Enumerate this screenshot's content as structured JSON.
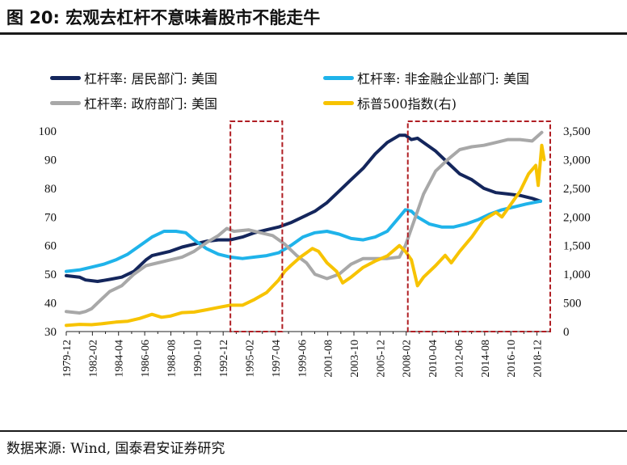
{
  "header": {
    "title": "图 20:  宏观去杠杆不意味着股市不能走牛"
  },
  "footer": {
    "source": "数据来源:  Wind,  国泰君安证券研究"
  },
  "chart_data": {
    "type": "line",
    "legend": [
      {
        "name": "杠杆率: 居民部门: 美国",
        "color": "#14265c"
      },
      {
        "name": "杠杆率: 非金融企业部门: 美国",
        "color": "#1fb3ea"
      },
      {
        "name": "杠杆率: 政府部门: 美国",
        "color": "#a8a8a8"
      },
      {
        "name": "标普500指数(右)",
        "color": "#f7c300"
      }
    ],
    "left_axis": {
      "min": 30,
      "max": 100,
      "ticks": [
        "30",
        "40",
        "50",
        "60",
        "70",
        "80",
        "90",
        "100"
      ]
    },
    "right_axis": {
      "min": 0,
      "max": 3500,
      "ticks": [
        "0",
        "500",
        "1,000",
        "1,500",
        "2,000",
        "2,500",
        "3,000",
        "3,500"
      ]
    },
    "x_ticks": [
      "1979-12",
      "1982-02",
      "1984-04",
      "1986-06",
      "1988-08",
      "1990-10",
      "1992-12",
      "1995-02",
      "1997-04",
      "1999-06",
      "2001-08",
      "2003-10",
      "2005-12",
      "2008-02",
      "2010-04",
      "2012-06",
      "2014-08",
      "2016-10",
      "2018-12"
    ],
    "x_range": [
      1979.9,
      2020.0
    ],
    "highlight_boxes": [
      {
        "label": "1993-1997",
        "start": 1993.5,
        "end": 1997.8
      },
      {
        "label": "2008-2020",
        "start": 2008.2,
        "end": 2020.0
      }
    ],
    "series": [
      {
        "name": "杠杆率: 居民部门: 美国",
        "axis": "left",
        "points": [
          [
            1979.9,
            49.5
          ],
          [
            1981,
            49
          ],
          [
            1981.5,
            48
          ],
          [
            1982.5,
            47.5
          ],
          [
            1983.5,
            48.2
          ],
          [
            1984.5,
            49
          ],
          [
            1985.5,
            51
          ],
          [
            1986.5,
            55
          ],
          [
            1987,
            56.5
          ],
          [
            1987.5,
            57
          ],
          [
            1988.5,
            58
          ],
          [
            1989.5,
            59.5
          ],
          [
            1990.5,
            60.5
          ],
          [
            1991.5,
            61.5
          ],
          [
            1992.5,
            62
          ],
          [
            1993.5,
            62
          ],
          [
            1994.5,
            63
          ],
          [
            1995.5,
            64.5
          ],
          [
            1996.5,
            65.5
          ],
          [
            1997.5,
            66.5
          ],
          [
            1998.5,
            68
          ],
          [
            1999.5,
            70
          ],
          [
            2000.5,
            72
          ],
          [
            2001.5,
            75
          ],
          [
            2002.5,
            79
          ],
          [
            2003.5,
            83
          ],
          [
            2004.5,
            87
          ],
          [
            2005.5,
            92
          ],
          [
            2006.5,
            96
          ],
          [
            2007.5,
            98.5
          ],
          [
            2008,
            98.5
          ],
          [
            2008.5,
            97
          ],
          [
            2009,
            97.5
          ],
          [
            2009.5,
            96
          ],
          [
            2010.5,
            93
          ],
          [
            2011.5,
            89
          ],
          [
            2012.5,
            85
          ],
          [
            2013.5,
            83
          ],
          [
            2014.5,
            80
          ],
          [
            2015.5,
            78.5
          ],
          [
            2016.5,
            78
          ],
          [
            2017.5,
            77.5
          ],
          [
            2018.5,
            76.5
          ],
          [
            2019.2,
            75.5
          ]
        ]
      },
      {
        "name": "杠杆率: 非金融企业部门: 美国",
        "axis": "left",
        "points": [
          [
            1979.9,
            51
          ],
          [
            1981,
            51.5
          ],
          [
            1982,
            52.5
          ],
          [
            1983,
            53.5
          ],
          [
            1984,
            55
          ],
          [
            1985,
            57
          ],
          [
            1986,
            60
          ],
          [
            1987,
            63
          ],
          [
            1988,
            65
          ],
          [
            1989,
            65
          ],
          [
            1989.8,
            64.5
          ],
          [
            1990.5,
            62
          ],
          [
            1991.5,
            59
          ],
          [
            1992.5,
            57
          ],
          [
            1993.5,
            56
          ],
          [
            1994.5,
            55.5
          ],
          [
            1995.5,
            56
          ],
          [
            1996.5,
            56.5
          ],
          [
            1997.5,
            57.5
          ],
          [
            1998.5,
            60
          ],
          [
            1999.5,
            63
          ],
          [
            2000.5,
            64.5
          ],
          [
            2001.5,
            65
          ],
          [
            2002.5,
            64
          ],
          [
            2003.5,
            62.5
          ],
          [
            2004.5,
            62
          ],
          [
            2005.5,
            63
          ],
          [
            2006.5,
            65
          ],
          [
            2007.5,
            70
          ],
          [
            2008,
            72.5
          ],
          [
            2008.5,
            72
          ],
          [
            2009,
            70
          ],
          [
            2010,
            67.5
          ],
          [
            2011,
            66.5
          ],
          [
            2012,
            66.5
          ],
          [
            2013,
            67.5
          ],
          [
            2014,
            69
          ],
          [
            2015,
            71
          ],
          [
            2016,
            72.5
          ],
          [
            2017,
            73.5
          ],
          [
            2018,
            74.5
          ],
          [
            2019.2,
            75.5
          ]
        ]
      },
      {
        "name": "杠杆率: 政府部门: 美国",
        "axis": "left",
        "points": [
          [
            1979.9,
            37
          ],
          [
            1981,
            36.5
          ],
          [
            1981.5,
            37
          ],
          [
            1982,
            38
          ],
          [
            1982.5,
            40
          ],
          [
            1983.5,
            44
          ],
          [
            1984.5,
            46
          ],
          [
            1985.5,
            50
          ],
          [
            1986.5,
            53
          ],
          [
            1987.5,
            54
          ],
          [
            1988.5,
            55
          ],
          [
            1989.5,
            56
          ],
          [
            1990.5,
            58
          ],
          [
            1991.5,
            61
          ],
          [
            1992.5,
            63.5
          ],
          [
            1993.2,
            66
          ],
          [
            1993.8,
            65
          ],
          [
            1995,
            65.5
          ],
          [
            1996,
            64.5
          ],
          [
            1997,
            63.5
          ],
          [
            1998,
            60.5
          ],
          [
            1999,
            56.5
          ],
          [
            1999.8,
            54
          ],
          [
            2000.5,
            50
          ],
          [
            2001.5,
            48.5
          ],
          [
            2002.5,
            50
          ],
          [
            2003.5,
            53.5
          ],
          [
            2004.5,
            55.5
          ],
          [
            2005.5,
            55.5
          ],
          [
            2006.5,
            55.5
          ],
          [
            2007.5,
            56
          ],
          [
            2008,
            60
          ],
          [
            2008.5,
            66
          ],
          [
            2009.5,
            78
          ],
          [
            2010.5,
            86
          ],
          [
            2011.5,
            90
          ],
          [
            2012.5,
            93.5
          ],
          [
            2013.5,
            94.5
          ],
          [
            2014.5,
            95
          ],
          [
            2015.5,
            96
          ],
          [
            2016.5,
            97
          ],
          [
            2017.5,
            97
          ],
          [
            2018.5,
            96.5
          ],
          [
            2019.3,
            99.5
          ]
        ]
      },
      {
        "name": "标普500指数(右)",
        "axis": "right",
        "points": [
          [
            1979.9,
            107
          ],
          [
            1981,
            125
          ],
          [
            1982,
            120
          ],
          [
            1982.8,
            135
          ],
          [
            1984,
            165
          ],
          [
            1985,
            180
          ],
          [
            1986,
            230
          ],
          [
            1987,
            300
          ],
          [
            1987.8,
            250
          ],
          [
            1988.5,
            270
          ],
          [
            1989.5,
            330
          ],
          [
            1990.5,
            340
          ],
          [
            1991.5,
            380
          ],
          [
            1992.5,
            420
          ],
          [
            1993.5,
            460
          ],
          [
            1994.5,
            460
          ],
          [
            1995.5,
            560
          ],
          [
            1996.5,
            680
          ],
          [
            1997.5,
            900
          ],
          [
            1998,
            1050
          ],
          [
            1998.5,
            1150
          ],
          [
            1999.3,
            1300
          ],
          [
            2000.3,
            1450
          ],
          [
            2000.8,
            1400
          ],
          [
            2001.5,
            1200
          ],
          [
            2002.3,
            1050
          ],
          [
            2002.8,
            850
          ],
          [
            2003.5,
            950
          ],
          [
            2004.5,
            1120
          ],
          [
            2005.5,
            1230
          ],
          [
            2006.5,
            1320
          ],
          [
            2007.5,
            1500
          ],
          [
            2008,
            1400
          ],
          [
            2008.5,
            1250
          ],
          [
            2009,
            800
          ],
          [
            2009.5,
            950
          ],
          [
            2010.5,
            1150
          ],
          [
            2011.3,
            1330
          ],
          [
            2011.8,
            1200
          ],
          [
            2012.5,
            1400
          ],
          [
            2013.5,
            1650
          ],
          [
            2014.5,
            1950
          ],
          [
            2015.5,
            2080
          ],
          [
            2016,
            2000
          ],
          [
            2016.5,
            2150
          ],
          [
            2017.5,
            2450
          ],
          [
            2018.2,
            2750
          ],
          [
            2018.8,
            2900
          ],
          [
            2019,
            2550
          ],
          [
            2019.3,
            3250
          ],
          [
            2019.5,
            3000
          ]
        ]
      }
    ]
  }
}
